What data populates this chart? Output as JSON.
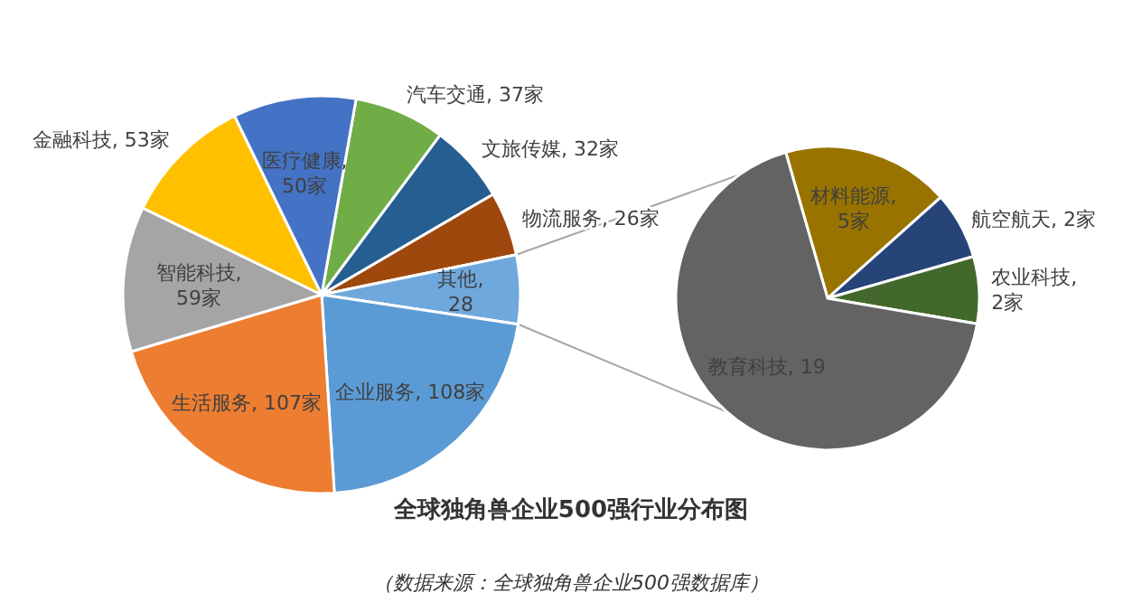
{
  "chart_data": [
    {
      "type": "pie",
      "title": "全球独角兽企业500强行业分布图",
      "annotations": [
        "（数据来源：全球独角兽企业500强数据库）"
      ],
      "categories": [
        "汽车交通",
        "文旅传媒",
        "物流服务",
        "其他",
        "企业服务",
        "生活服务",
        "智能科技",
        "金融科技",
        "医疗健康"
      ],
      "values": [
        37,
        32,
        26,
        28,
        108,
        107,
        59,
        53,
        50
      ],
      "colors": [
        "#70ad47",
        "#255e91",
        "#9e480e",
        "#6fa8dc",
        "#5b9bd5",
        "#ed7d31",
        "#a5a5a5",
        "#ffc000",
        "#4472c4"
      ],
      "value_labels": [
        ", 37家",
        ", 32家",
        ", 26家",
        ", 28",
        ", 108家",
        ", 107家",
        ", 59家",
        ", 53家",
        ", 50家"
      ]
    },
    {
      "type": "pie",
      "categories": [
        "材料能源",
        "航空航天",
        "农业科技",
        "教育科技"
      ],
      "values": [
        5,
        2,
        2,
        19
      ],
      "colors": [
        "#997300",
        "#264478",
        "#43682b",
        "#636363"
      ],
      "value_labels": [
        ", 5家",
        ", 2家",
        ", 2家",
        ", 19"
      ]
    }
  ]
}
